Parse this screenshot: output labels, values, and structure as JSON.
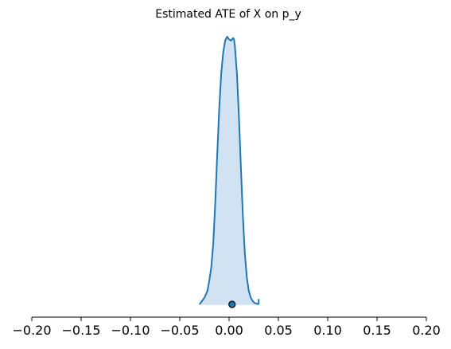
{
  "chart_data": {
    "type": "area",
    "title": "Estimated ATE of X on p_y",
    "xlabel": "",
    "ylabel": "",
    "xlim": [
      -0.2,
      0.2
    ],
    "xticks": [
      -0.2,
      -0.15,
      -0.1,
      -0.05,
      0.0,
      0.05,
      0.1,
      0.15,
      0.2
    ],
    "xtick_labels": [
      "−0.20",
      "−0.15",
      "−0.10",
      "−0.05",
      "0.00",
      "0.05",
      "0.10",
      "0.15",
      "0.20"
    ],
    "grid": false,
    "show_y_axis": false,
    "series": [
      {
        "kind": "density",
        "color": "#1f77b4",
        "fill_color": "#c6dbef",
        "fill_opacity": 0.8,
        "x": [
          -0.03,
          -0.028,
          -0.025,
          -0.022,
          -0.02,
          -0.018,
          -0.016,
          -0.014,
          -0.012,
          -0.01,
          -0.008,
          -0.006,
          -0.004,
          -0.002,
          0.0,
          0.002,
          0.003,
          0.004,
          0.005,
          0.006,
          0.008,
          0.01,
          0.012,
          0.014,
          0.016,
          0.018,
          0.02,
          0.022,
          0.024,
          0.026,
          0.028,
          0.03
        ],
        "density": [
          0.0,
          0.01,
          0.025,
          0.05,
          0.09,
          0.14,
          0.23,
          0.38,
          0.56,
          0.73,
          0.86,
          0.94,
          0.985,
          1.0,
          0.99,
          0.985,
          0.99,
          0.995,
          0.99,
          0.96,
          0.86,
          0.7,
          0.51,
          0.33,
          0.19,
          0.1,
          0.05,
          0.025,
          0.012,
          0.005,
          0.003,
          0.0
        ]
      }
    ],
    "point_estimate": {
      "x": 0.003,
      "color": "#1f77b4",
      "edge_color": "#000000"
    }
  }
}
